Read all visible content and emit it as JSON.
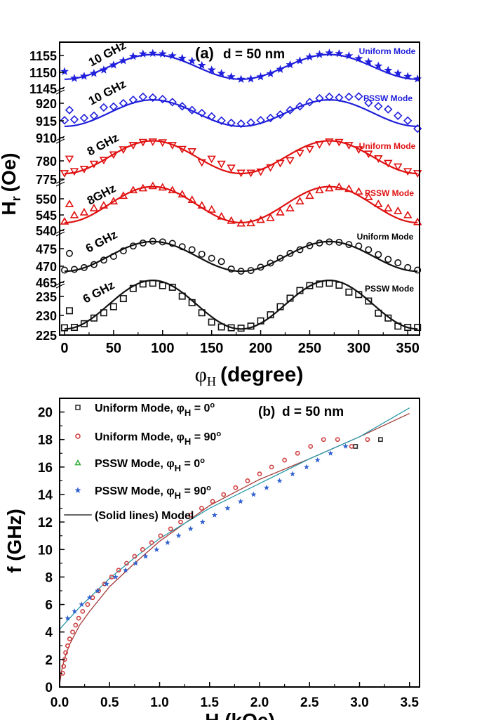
{
  "chart_data": [
    {
      "type": "scatter",
      "panel_label": "(a)",
      "annotation": "d = 50 nm",
      "x_symbol": "φ",
      "x_subscript": "H",
      "xlabel_unit": "(degree)",
      "y_symbol": "H",
      "y_subscript": "r",
      "ylabel_unit": "(Oe)",
      "xlim": [
        -5,
        362
      ],
      "x_ticks": [
        "0",
        "50",
        "100",
        "150",
        "200",
        "250",
        "300",
        "350"
      ],
      "bands": [
        {
          "name": "10 GHz Uniform Mode",
          "freq_label": "10 GHz",
          "mode_label": "Uniform Mode",
          "color": "#1f1fdc",
          "marker": "star",
          "ylim": [
            1145,
            1160
          ],
          "y_ticks": [
            "1155",
            "1150",
            "1145"
          ],
          "fit": {
            "center": 1152.0,
            "amplitude": 4.0
          },
          "x": [
            0,
            10,
            20,
            30,
            40,
            50,
            60,
            70,
            80,
            90,
            100,
            110,
            120,
            130,
            140,
            150,
            160,
            170,
            180,
            190,
            200,
            210,
            220,
            230,
            240,
            250,
            260,
            270,
            280,
            290,
            300,
            310,
            320,
            330,
            340,
            350,
            360
          ],
          "values": [
            1150.5,
            1148.3,
            1149.0,
            1149.9,
            1151.0,
            1152.6,
            1154.0,
            1155.4,
            1156.2,
            1156.4,
            1156.2,
            1155.6,
            1154.8,
            1153.9,
            1152.5,
            1151.0,
            1149.9,
            1148.8,
            1148.0,
            1148.1,
            1148.8,
            1149.8,
            1151.2,
            1152.7,
            1154.0,
            1155.2,
            1156.0,
            1156.5,
            1156.3,
            1155.6,
            1154.7,
            1153.6,
            1152.3,
            1150.9,
            1149.9,
            1148.9,
            1148.1
          ]
        },
        {
          "name": "10 GHz PSSW Mode",
          "freq_label": "10 GHz",
          "mode_label": "PSSW Mode",
          "color": "#1f1fdc",
          "marker": "diamond",
          "ylim": [
            910,
            923
          ],
          "y_ticks": [
            "920",
            "915",
            "910"
          ],
          "fit": {
            "center": 916.5,
            "amplitude": 3.5
          },
          "x": [
            0,
            5,
            10,
            20,
            30,
            40,
            50,
            60,
            70,
            80,
            90,
            100,
            110,
            120,
            130,
            140,
            150,
            160,
            170,
            180,
            190,
            200,
            210,
            220,
            230,
            240,
            250,
            260,
            270,
            280,
            290,
            300,
            310,
            320,
            330,
            340,
            350,
            360
          ],
          "values": [
            914.6,
            917.3,
            914.8,
            915.2,
            915.8,
            918.0,
            918.2,
            919.1,
            920.0,
            920.8,
            920.6,
            920.2,
            919.4,
            918.3,
            917.3,
            916.5,
            915.6,
            914.5,
            913.9,
            913.7,
            914.0,
            914.6,
            915.2,
            916.1,
            917.3,
            918.3,
            919.4,
            920.4,
            920.8,
            920.6,
            920.8,
            920.9,
            919.2,
            918.3,
            917.5,
            915.8,
            914.5,
            912.4
          ]
        },
        {
          "name": "8 GHz Uniform Mode",
          "freq_label": "8 GHz",
          "mode_label": "Uniform Mode",
          "color": "#e01010",
          "marker": "triangle-down",
          "ylim": [
            772,
            783
          ],
          "y_ticks": [
            "780",
            "775"
          ],
          "fit": {
            "center": 778.0,
            "amplitude": 4.2
          },
          "x": [
            0,
            5,
            10,
            20,
            30,
            40,
            50,
            60,
            70,
            80,
            90,
            100,
            110,
            120,
            130,
            140,
            150,
            160,
            170,
            180,
            190,
            200,
            210,
            220,
            230,
            240,
            250,
            260,
            270,
            280,
            290,
            300,
            310,
            320,
            330,
            340,
            350,
            360
          ],
          "values": [
            773.9,
            777.6,
            774.4,
            775.0,
            776.3,
            777.3,
            778.7,
            780.0,
            781.1,
            781.9,
            782.0,
            781.8,
            781.1,
            780.1,
            779.5,
            776.7,
            777.6,
            776.3,
            775.3,
            774.0,
            774.0,
            774.3,
            775.4,
            776.5,
            777.2,
            779.1,
            780.1,
            781.3,
            782.0,
            781.9,
            781.1,
            780.0,
            778.9,
            777.7,
            776.5,
            775.6,
            774.4,
            773.9
          ]
        },
        {
          "name": "8 GHz PSSW Mode",
          "freq_label": "8GHz",
          "mode_label": "PSSW Mode",
          "color": "#e01010",
          "marker": "triangle-up",
          "ylim": [
            538,
            556
          ],
          "y_ticks": [
            "550",
            "545",
            "540"
          ],
          "fit": {
            "center": 547.3,
            "amplitude": 6.5
          },
          "x": [
            0,
            5,
            10,
            20,
            30,
            40,
            50,
            60,
            70,
            80,
            90,
            100,
            110,
            120,
            130,
            140,
            150,
            160,
            170,
            180,
            190,
            200,
            210,
            220,
            230,
            240,
            250,
            260,
            270,
            280,
            290,
            300,
            310,
            320,
            330,
            340,
            350,
            360
          ],
          "values": [
            541.2,
            547.5,
            543.5,
            544.5,
            546.0,
            547.0,
            548.5,
            550.5,
            552.5,
            553.2,
            554.0,
            553.5,
            552.5,
            551.0,
            549.0,
            547.0,
            545.5,
            543.0,
            541.5,
            540.5,
            540.6,
            541.8,
            542.5,
            544.5,
            546.0,
            548.5,
            550.5,
            552.5,
            553.2,
            553.7,
            553.0,
            552.0,
            550.0,
            547.5,
            546.0,
            545.0,
            543.5,
            541.0
          ]
        },
        {
          "name": "6 GHz Uniform Mode",
          "freq_label": "6 GHz",
          "mode_label": "Uniform Mode",
          "color": "#111111",
          "marker": "circle",
          "ylim": [
            464,
            478
          ],
          "y_ticks": [
            "475",
            "470",
            "465"
          ],
          "fit": {
            "center": 471.0,
            "amplitude": 4.0
          },
          "x": [
            0,
            5,
            10,
            20,
            30,
            40,
            50,
            60,
            70,
            80,
            90,
            100,
            110,
            120,
            130,
            140,
            150,
            160,
            170,
            180,
            190,
            200,
            210,
            220,
            230,
            240,
            250,
            260,
            270,
            280,
            290,
            300,
            310,
            320,
            330,
            340,
            350,
            360
          ],
          "values": [
            467.3,
            471.8,
            467.5,
            468.0,
            468.8,
            470.0,
            471.0,
            472.5,
            473.8,
            474.6,
            475.1,
            474.9,
            474.5,
            473.6,
            472.8,
            471.6,
            470.5,
            469.6,
            467.6,
            467.0,
            467.2,
            468.1,
            469.2,
            470.5,
            471.8,
            472.8,
            473.9,
            474.6,
            474.9,
            474.8,
            474.2,
            473.8,
            472.8,
            471.5,
            470.2,
            469.3,
            468.0,
            467.3
          ]
        },
        {
          "name": "6 GHz PSSW Mode",
          "freq_label": "6 GHz",
          "mode_label": "PSSW Mode",
          "color": "#111111",
          "marker": "square",
          "ylim": [
            225,
            238
          ],
          "y_ticks": [
            "235",
            "230",
            "225"
          ],
          "fit": {
            "center": 232.5,
            "amplitude": 6.0
          },
          "x": [
            0,
            5,
            10,
            20,
            30,
            40,
            50,
            60,
            70,
            80,
            90,
            100,
            110,
            120,
            130,
            140,
            150,
            160,
            170,
            180,
            190,
            200,
            210,
            220,
            230,
            240,
            250,
            260,
            270,
            280,
            290,
            300,
            310,
            320,
            330,
            340,
            350,
            360
          ],
          "values": [
            226.8,
            231.0,
            226.9,
            227.8,
            229.2,
            230.5,
            232.0,
            234.0,
            236.5,
            237.6,
            237.8,
            237.2,
            236.8,
            234.6,
            233.0,
            230.5,
            228.2,
            227.0,
            226.8,
            226.7,
            227.2,
            228.5,
            230.0,
            232.0,
            234.1,
            236.0,
            237.2,
            237.6,
            237.8,
            237.3,
            235.6,
            235.0,
            233.4,
            230.4,
            229.2,
            227.2,
            226.9,
            226.9
          ]
        }
      ]
    },
    {
      "type": "scatter",
      "panel_label": "(b)",
      "annotation": "d = 50 nm",
      "ylabel": "f (GHz)",
      "xlabel": "H (kOe)",
      "xlim": [
        0.0,
        3.6
      ],
      "ylim": [
        0,
        21
      ],
      "x_ticks": [
        "0.0",
        "0.5",
        "1.0",
        "1.5",
        "2.0",
        "2.5",
        "3.0",
        "3.5"
      ],
      "y_ticks": [
        "0",
        "2",
        "4",
        "6",
        "8",
        "10",
        "12",
        "14",
        "16",
        "18",
        "20"
      ],
      "series": [
        {
          "name": "Uniform Mode, φ_H = 0°",
          "legend_text": "Uniform Mode, φ",
          "legend_sub": "H",
          "legend_tail": " = 0",
          "color": "#333333",
          "marker": "square",
          "x": [
            2.96,
            3.21
          ],
          "values": [
            17.5,
            18.0
          ]
        },
        {
          "name": "Uniform Mode, φ_H = 90°",
          "legend_text": "Uniform Mode, φ",
          "legend_sub": "H",
          "legend_tail": " = 90",
          "color": "#d04040",
          "marker": "circle",
          "x": [
            0.03,
            0.04,
            0.05,
            0.06,
            0.08,
            0.1,
            0.13,
            0.16,
            0.19,
            0.23,
            0.28,
            0.33,
            0.39,
            0.45,
            0.52,
            0.59,
            0.67,
            0.75,
            0.83,
            0.92,
            1.01,
            1.11,
            1.21,
            1.31,
            1.42,
            1.53,
            1.64,
            1.76,
            1.88,
            2.0,
            2.12,
            2.25,
            2.38,
            2.51,
            2.64,
            2.78,
            2.92,
            3.08
          ],
          "values": [
            1.0,
            1.5,
            2.0,
            2.5,
            3.0,
            3.5,
            4.0,
            4.5,
            5.0,
            5.5,
            6.0,
            6.5,
            7.0,
            7.5,
            8.0,
            8.5,
            9.0,
            9.5,
            10.0,
            10.5,
            11.0,
            11.5,
            12.0,
            12.5,
            13.0,
            13.5,
            14.0,
            14.5,
            15.0,
            15.5,
            16.0,
            16.5,
            17.0,
            17.5,
            18.0,
            18.0,
            17.5,
            18.0
          ]
        },
        {
          "name": "PSSW Mode, φ_H = 0°",
          "legend_text": "PSSW Mode, φ",
          "legend_sub": "H",
          "legend_tail": " = 0",
          "color": "#3cb043",
          "marker": "triangle-up",
          "x": [],
          "values": []
        },
        {
          "name": "PSSW Mode, φ_H = 90°",
          "legend_text": "PSSW Mode, φ",
          "legend_sub": "H",
          "legend_tail": " = 90",
          "color": "#3060d0",
          "marker": "star",
          "x": [
            0.08,
            0.15,
            0.22,
            0.3,
            0.38,
            0.47,
            0.56,
            0.66,
            0.76,
            0.86,
            0.97,
            1.08,
            1.19,
            1.31,
            1.43,
            1.55,
            1.68,
            1.81,
            1.94,
            2.07,
            2.2,
            2.33,
            2.47,
            2.58,
            2.71,
            2.86
          ],
          "values": [
            5.0,
            5.5,
            6.0,
            6.5,
            7.0,
            7.5,
            8.0,
            8.5,
            9.0,
            9.5,
            10.0,
            10.5,
            11.0,
            11.5,
            12.0,
            12.5,
            13.0,
            13.5,
            14.0,
            14.5,
            15.0,
            15.5,
            16.0,
            16.5,
            17.0,
            17.5
          ]
        },
        {
          "name": "(Solid lines) Model",
          "legend_text": "(Solid lines) Model",
          "color": "#333333",
          "marker": "line",
          "x": [],
          "values": []
        }
      ],
      "model_lines": [
        {
          "name": "uniform",
          "color": "#a33a3a",
          "x": [
            0.0,
            0.02,
            0.05,
            0.1,
            0.2,
            0.3,
            0.5,
            0.75,
            1.0,
            1.5,
            2.0,
            2.5,
            3.0,
            3.5
          ],
          "values": [
            0.2,
            1.2,
            2.1,
            3.1,
            4.5,
            5.5,
            7.3,
            9.0,
            10.6,
            13.2,
            15.1,
            16.6,
            18.2,
            19.9
          ]
        },
        {
          "name": "pssw",
          "color": "#2a9aaa",
          "x": [
            0.0,
            0.05,
            0.1,
            0.2,
            0.3,
            0.5,
            0.75,
            1.0,
            1.5,
            2.0,
            2.5,
            3.0,
            3.5
          ],
          "values": [
            4.2,
            4.6,
            5.0,
            5.8,
            6.5,
            7.9,
            9.4,
            10.8,
            13.0,
            14.8,
            16.6,
            18.2,
            20.3
          ]
        }
      ]
    }
  ]
}
